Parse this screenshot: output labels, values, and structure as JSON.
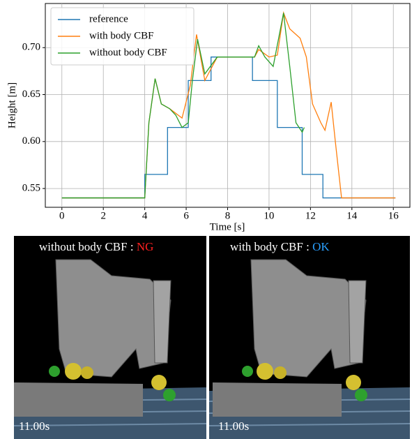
{
  "chart_data": {
    "type": "line",
    "xlabel": "Time [s]",
    "ylabel": "Height [m]",
    "xlim": [
      -0.8,
      16.8
    ],
    "ylim": [
      0.53,
      0.747
    ],
    "xticks": [
      0,
      2,
      4,
      6,
      8,
      10,
      12,
      14,
      16
    ],
    "yticks": [
      0.55,
      {
        "value": 0.6,
        "label": "0.60"
      },
      0.65,
      {
        "value": 0.7,
        "label": "0.70"
      }
    ],
    "grid": true,
    "legend": "upper left",
    "series": [
      {
        "name": "reference",
        "color": "#1f77b4",
        "x": [
          0,
          4,
          4,
          5.1,
          5.1,
          6.1,
          6.1,
          7.2,
          7.2,
          9.2,
          9.2,
          10.4,
          10.4,
          11.6,
          11.6,
          12.6,
          12.6,
          16.1
        ],
        "values": [
          0.54,
          0.54,
          0.565,
          0.565,
          0.615,
          0.615,
          0.665,
          0.665,
          0.69,
          0.69,
          0.665,
          0.665,
          0.615,
          0.615,
          0.565,
          0.565,
          0.54,
          0.54
        ]
      },
      {
        "name": "with body CBF",
        "color": "#ff7f0e",
        "x": [
          0,
          4.0,
          4.2,
          4.5,
          4.8,
          5.2,
          5.5,
          5.8,
          6.2,
          6.5,
          6.9,
          7.5,
          9.3,
          9.5,
          10.0,
          10.4,
          10.7,
          11.0,
          11.5,
          11.8,
          12.1,
          12.5,
          12.7,
          13.0,
          13.2,
          13.5,
          16.1
        ],
        "values": [
          0.54,
          0.54,
          0.62,
          0.667,
          0.64,
          0.635,
          0.63,
          0.625,
          0.66,
          0.714,
          0.665,
          0.69,
          0.69,
          0.698,
          0.69,
          0.692,
          0.737,
          0.72,
          0.71,
          0.69,
          0.64,
          0.62,
          0.612,
          0.642,
          0.6,
          0.54,
          0.54
        ]
      },
      {
        "name": "without body CBF",
        "color": "#2ca02c",
        "x": [
          0,
          4.0,
          4.2,
          4.5,
          4.8,
          5.2,
          5.5,
          5.8,
          6.1,
          6.3,
          6.55,
          6.9,
          7.5,
          9.3,
          9.5,
          9.8,
          10.2,
          10.7,
          11.0,
          11.3,
          11.6,
          11.7
        ],
        "values": [
          0.54,
          0.54,
          0.62,
          0.667,
          0.64,
          0.635,
          0.628,
          0.615,
          0.62,
          0.665,
          0.709,
          0.672,
          0.69,
          0.69,
          0.702,
          0.69,
          0.68,
          0.737,
          0.68,
          0.62,
          0.61,
          0.615
        ]
      }
    ]
  },
  "panels": [
    {
      "caption": "without  body CBF : ",
      "status": "NG",
      "time": "11.00s"
    },
    {
      "caption": "with  body CBF : ",
      "status": "OK",
      "time": "11.00s"
    }
  ]
}
